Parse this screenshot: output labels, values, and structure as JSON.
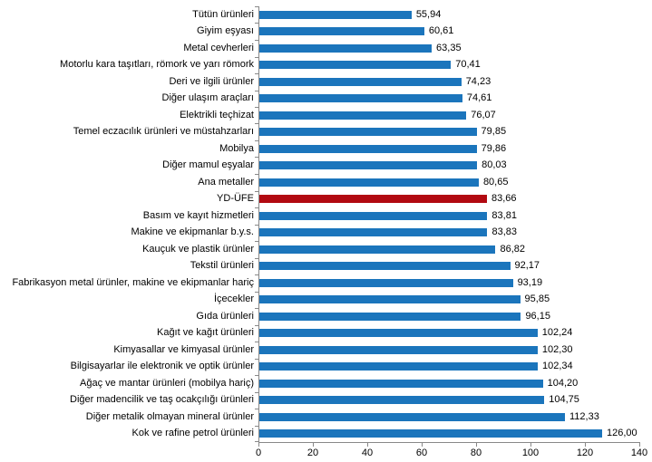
{
  "chart_data": {
    "type": "bar",
    "orientation": "horizontal",
    "title": "",
    "xlabel": "",
    "ylabel": "",
    "xlim": [
      0,
      140
    ],
    "x_ticks": [
      0,
      20,
      40,
      60,
      80,
      100,
      120,
      140
    ],
    "grid": false,
    "legend": "none",
    "bar_color": "#1B75BC",
    "highlight_color": "#B20911",
    "axis_color": "#888888",
    "items": [
      {
        "label": "Tütün ürünleri",
        "value": 55.94,
        "value_display": "55,94",
        "highlight": false
      },
      {
        "label": "Giyim eşyası",
        "value": 60.61,
        "value_display": "60,61",
        "highlight": false
      },
      {
        "label": "Metal cevherleri",
        "value": 63.35,
        "value_display": "63,35",
        "highlight": false
      },
      {
        "label": "Motorlu kara taşıtları, römork ve yarı römork",
        "value": 70.41,
        "value_display": "70,41",
        "highlight": false
      },
      {
        "label": "Deri ve ilgili ürünler",
        "value": 74.23,
        "value_display": "74,23",
        "highlight": false
      },
      {
        "label": "Diğer ulaşım araçları",
        "value": 74.61,
        "value_display": "74,61",
        "highlight": false
      },
      {
        "label": "Elektrikli teçhizat",
        "value": 76.07,
        "value_display": "76,07",
        "highlight": false
      },
      {
        "label": "Temel eczacılık ürünleri ve müstahzarları",
        "value": 79.85,
        "value_display": "79,85",
        "highlight": false
      },
      {
        "label": "Mobilya",
        "value": 79.86,
        "value_display": "79,86",
        "highlight": false
      },
      {
        "label": "Diğer mamul eşyalar",
        "value": 80.03,
        "value_display": "80,03",
        "highlight": false
      },
      {
        "label": "Ana metaller",
        "value": 80.65,
        "value_display": "80,65",
        "highlight": false
      },
      {
        "label": "YD-ÜFE",
        "value": 83.66,
        "value_display": "83,66",
        "highlight": true
      },
      {
        "label": "Basım ve kayıt hizmetleri",
        "value": 83.81,
        "value_display": "83,81",
        "highlight": false
      },
      {
        "label": "Makine ve ekipmanlar b.y.s.",
        "value": 83.83,
        "value_display": "83,83",
        "highlight": false
      },
      {
        "label": "Kauçuk ve plastik ürünler",
        "value": 86.82,
        "value_display": "86,82",
        "highlight": false
      },
      {
        "label": "Tekstil ürünleri",
        "value": 92.17,
        "value_display": "92,17",
        "highlight": false
      },
      {
        "label": "Fabrikasyon metal ürünler, makine ve ekipmanlar hariç",
        "value": 93.19,
        "value_display": "93,19",
        "highlight": false
      },
      {
        "label": "İçecekler",
        "value": 95.85,
        "value_display": "95,85",
        "highlight": false
      },
      {
        "label": "Gıda ürünleri",
        "value": 96.15,
        "value_display": "96,15",
        "highlight": false
      },
      {
        "label": "Kağıt ve kağıt ürünleri",
        "value": 102.24,
        "value_display": "102,24",
        "highlight": false
      },
      {
        "label": "Kimyasallar ve kimyasal ürünler",
        "value": 102.3,
        "value_display": "102,30",
        "highlight": false
      },
      {
        "label": "Bilgisayarlar ile elektronik ve optik ürünler",
        "value": 102.34,
        "value_display": "102,34",
        "highlight": false
      },
      {
        "label": "Ağaç ve mantar ürünleri (mobilya hariç)",
        "value": 104.2,
        "value_display": "104,20",
        "highlight": false
      },
      {
        "label": "Diğer madencilik ve taş ocakçılığı ürünleri",
        "value": 104.75,
        "value_display": "104,75",
        "highlight": false
      },
      {
        "label": "Diğer metalik olmayan mineral ürünler",
        "value": 112.33,
        "value_display": "112,33",
        "highlight": false
      },
      {
        "label": "Kok ve rafine petrol ürünleri",
        "value": 126.0,
        "value_display": "126,00",
        "highlight": false
      }
    ]
  }
}
